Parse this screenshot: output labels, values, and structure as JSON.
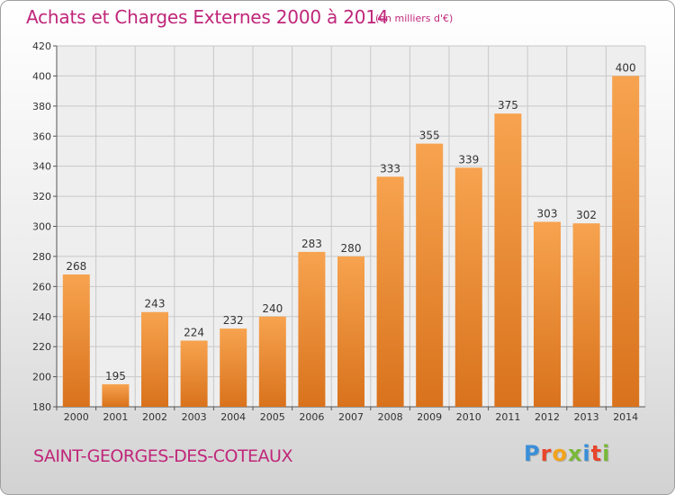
{
  "header": {
    "title": "Achats et Charges Externes 2000 à 2014",
    "subtitle": "(en milliers d'€)"
  },
  "footer": {
    "commune": "SAINT-GEORGES-DES-COTEAUX",
    "brand": "Proxiti"
  },
  "colors": {
    "title": "#c0267a",
    "bar_light": "#f7a34f",
    "bar_dark": "#d9721c",
    "grid": "#c8c8c8"
  },
  "chart_data": {
    "type": "bar",
    "title": "Achats et Charges Externes 2000 à 2014",
    "categories": [
      "2000",
      "2001",
      "2002",
      "2003",
      "2004",
      "2005",
      "2006",
      "2007",
      "2008",
      "2009",
      "2010",
      "2011",
      "2012",
      "2013",
      "2014"
    ],
    "values": [
      268,
      195,
      243,
      224,
      232,
      240,
      283,
      280,
      333,
      355,
      339,
      375,
      303,
      302,
      400
    ],
    "ylim": [
      180,
      420
    ],
    "yticks": [
      180,
      200,
      220,
      240,
      260,
      280,
      300,
      320,
      340,
      360,
      380,
      400,
      420
    ],
    "grid": true,
    "xlabel": "",
    "ylabel": ""
  }
}
